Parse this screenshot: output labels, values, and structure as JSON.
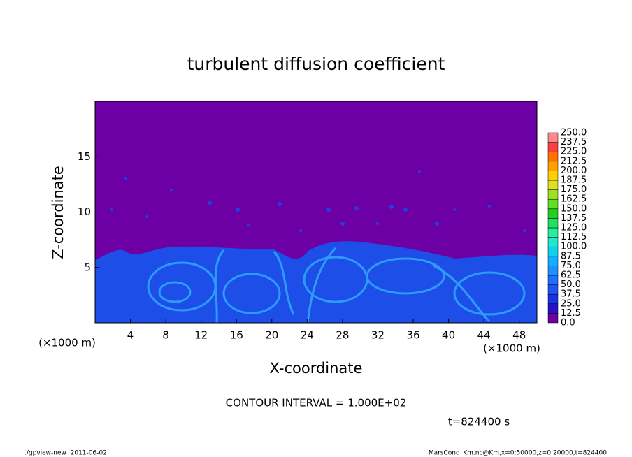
{
  "chart_data": {
    "type": "contour",
    "title": "turbulent diffusion coefficient",
    "x_label": "X-coordinate",
    "y_label": "Z-coordinate",
    "x_unit": "(×1000 m)",
    "y_unit": "(×1000 m)",
    "xlim": [
      0,
      50
    ],
    "xticks": [
      4,
      8,
      12,
      16,
      20,
      24,
      28,
      32,
      36,
      40,
      44,
      48
    ],
    "ylim": [
      0,
      20
    ],
    "yticks": [
      5,
      10,
      15
    ],
    "colorbar": {
      "levels": [
        {
          "value": 0,
          "label": "0.0"
        },
        {
          "value": 12.5,
          "label": "12.5"
        },
        {
          "value": 25,
          "label": "25.0"
        },
        {
          "value": 37.5,
          "label": "37.5"
        },
        {
          "value": 50,
          "label": "50.0"
        },
        {
          "value": 62.5,
          "label": "62.5"
        },
        {
          "value": 75,
          "label": "75.0"
        },
        {
          "value": 87.5,
          "label": "87.5"
        },
        {
          "value": 100,
          "label": "100.0"
        },
        {
          "value": 112.5,
          "label": "112.5"
        },
        {
          "value": 125,
          "label": "125.0"
        },
        {
          "value": 137.5,
          "label": "137.5"
        },
        {
          "value": 150,
          "label": "150.0"
        },
        {
          "value": 162.5,
          "label": "162.5"
        },
        {
          "value": 175,
          "label": "175.0"
        },
        {
          "value": 187.5,
          "label": "187.5"
        },
        {
          "value": 200,
          "label": "200.0"
        },
        {
          "value": 212.5,
          "label": "212.5"
        },
        {
          "value": 225,
          "label": "225.0"
        },
        {
          "value": 237.5,
          "label": "237.5"
        },
        {
          "value": 250,
          "label": "250.0"
        }
      ],
      "colors": [
        "#6c00a4",
        "#2a10c8",
        "#1a32e6",
        "#1e52f2",
        "#2070ff",
        "#2090ff",
        "#10b0ff",
        "#10d0f0",
        "#20e8d0",
        "#20f0a0",
        "#20e060",
        "#20d020",
        "#60e020",
        "#a0e020",
        "#e0e020",
        "#ffd000",
        "#ffa000",
        "#ff7000",
        "#ff4040",
        "#ff8888"
      ]
    },
    "annotations": [
      "CONTOUR INTERVAL = 1.000E+02",
      "t=824400 s"
    ],
    "footer_left": "./gpview-new  2011-06-02",
    "footer_right": "MarsCond_Km.nc@Km,x=0:50000,z=0:20000,t=824400"
  }
}
